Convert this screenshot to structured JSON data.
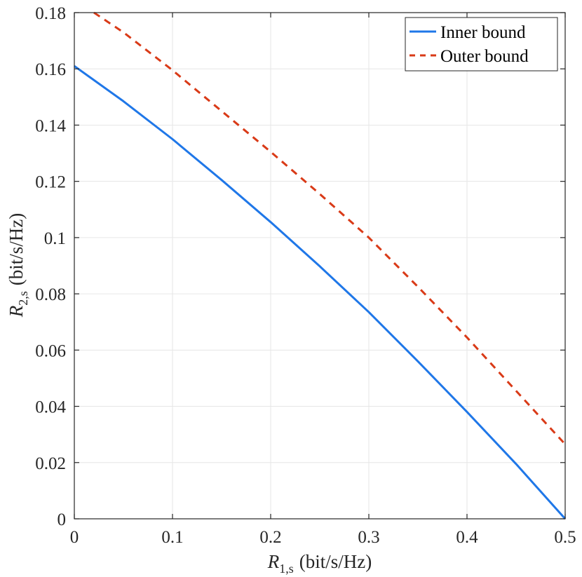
{
  "chart_data": {
    "type": "line",
    "title": "",
    "xlabel": {
      "symbol": "R",
      "subscript": "1,s",
      "unit": "(bit/s/Hz)"
    },
    "ylabel": {
      "symbol": "R",
      "subscript": "2,s",
      "unit": "(bit/s/Hz)"
    },
    "xlim": [
      0,
      0.5
    ],
    "ylim": [
      0,
      0.18
    ],
    "x_ticks": [
      0,
      0.1,
      0.2,
      0.3,
      0.4,
      0.5
    ],
    "x_tick_labels": [
      "0",
      "0.1",
      "0.2",
      "0.3",
      "0.4",
      "0.5"
    ],
    "y_ticks": [
      0,
      0.02,
      0.04,
      0.06,
      0.08,
      0.1,
      0.12,
      0.14,
      0.16,
      0.18
    ],
    "y_tick_labels": [
      "0",
      "0.02",
      "0.04",
      "0.06",
      "0.08",
      "0.1",
      "0.12",
      "0.14",
      "0.16",
      "0.18"
    ],
    "grid": true,
    "legend_position": "top-right",
    "series": [
      {
        "name": "Inner bound",
        "color": "#1f77e8",
        "style": "solid",
        "x": [
          0,
          0.05,
          0.1,
          0.15,
          0.2,
          0.25,
          0.3,
          0.35,
          0.4,
          0.45,
          0.5
        ],
        "y": [
          0.161,
          0.1485,
          0.135,
          0.1205,
          0.1055,
          0.0898,
          0.0735,
          0.056,
          0.038,
          0.0195,
          0.0
        ]
      },
      {
        "name": "Outer bound",
        "color": "#d93a17",
        "style": "dashed",
        "x": [
          0.02,
          0.05,
          0.1,
          0.15,
          0.2,
          0.25,
          0.3,
          0.35,
          0.4,
          0.45,
          0.5
        ],
        "y": [
          0.18,
          0.173,
          0.1595,
          0.145,
          0.1305,
          0.1155,
          0.1,
          0.0825,
          0.0645,
          0.0455,
          0.0265
        ]
      }
    ]
  }
}
